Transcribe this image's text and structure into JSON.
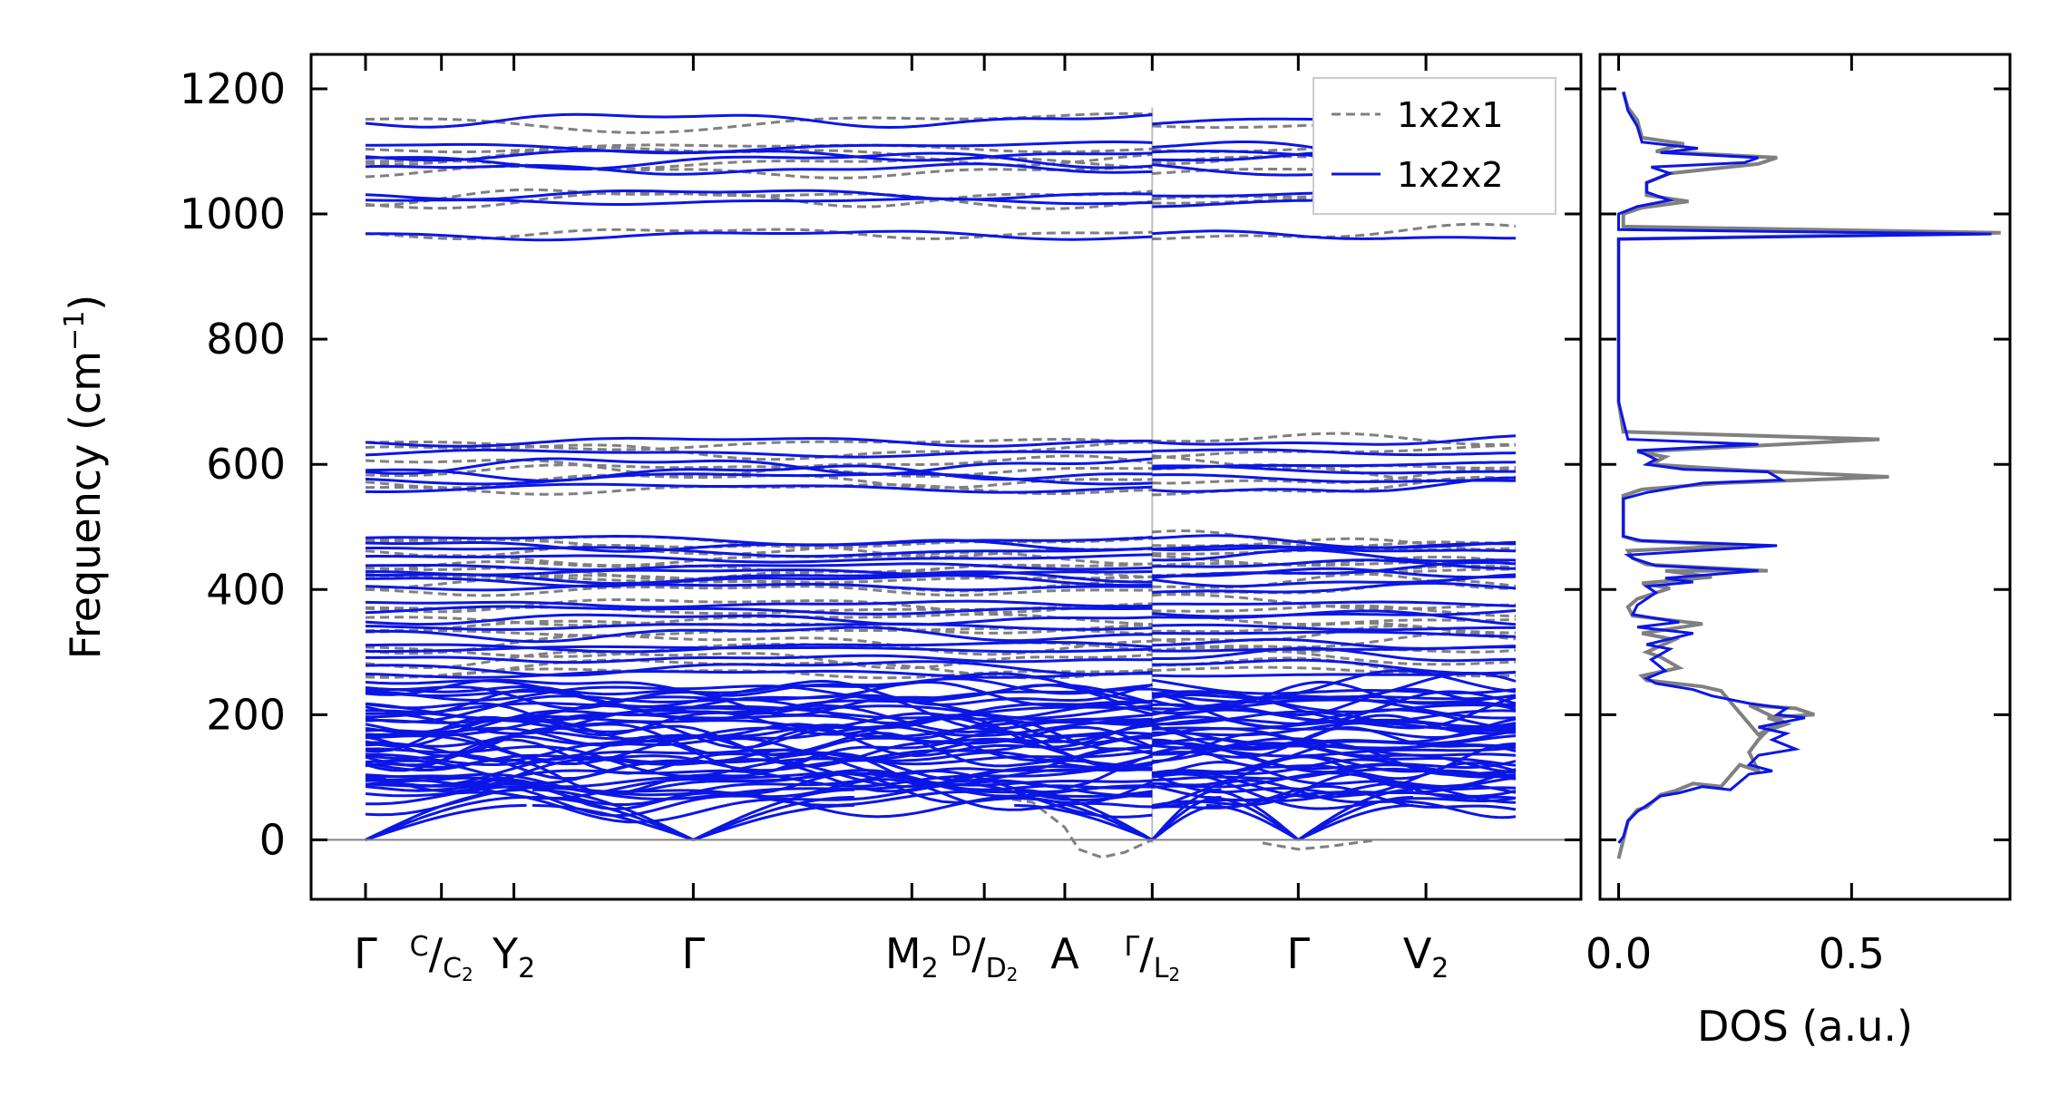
{
  "colors": {
    "blue": "#0b16e6",
    "grey": "#808080"
  },
  "chart_data": [
    {
      "type": "line",
      "name": "phonon band structure",
      "ylabel": "Frequency (cm⁻¹)",
      "ylabel_main": "Frequency (cm",
      "ylabel_exp": "−1",
      "ylabel_close": ")",
      "ylim": [
        -95,
        1255
      ],
      "yticks": [
        0,
        200,
        400,
        600,
        800,
        1000,
        1200
      ],
      "ytick_labels": [
        "0",
        "200",
        "400",
        "600",
        "800",
        "1000",
        "1200"
      ],
      "x_range": [
        0,
        100
      ],
      "xlabels": [
        {
          "x": 0,
          "main": "Γ"
        },
        {
          "x": 28.5,
          "main": "Γ"
        },
        {
          "x": 81.1,
          "main": "Γ"
        },
        {
          "x": 92.2,
          "main": "V",
          "sub": "2"
        }
      ],
      "xlabels_rich": [
        {
          "x": 6.6,
          "num": "C",
          "den": "C",
          "den_sub": "2"
        },
        {
          "x": 12.9,
          "main": "Y",
          "sub": "2"
        },
        {
          "x": 47.5,
          "main": "M",
          "sub": "2"
        },
        {
          "x": 53.8,
          "num": "D",
          "den": "D",
          "den_sub": "2"
        },
        {
          "x": 60.8,
          "main": "A"
        },
        {
          "x": 68.4,
          "num": "Γ",
          "den": "L",
          "den_sub": "2"
        }
      ],
      "xticks": [
        0,
        6.6,
        12.9,
        28.5,
        47.5,
        53.8,
        60.8,
        68.4,
        81.1,
        92.2
      ],
      "segments": [
        [
          0,
          68.4
        ],
        [
          68.4,
          100
        ]
      ],
      "legend": [
        {
          "label": "1x2x1",
          "style": "dashed",
          "color": "#808080"
        },
        {
          "label": "1x2x2",
          "style": "solid",
          "color": "#0b16e6"
        }
      ],
      "series": [
        {
          "name": "1x2x2 flat optical bands",
          "color": "blue",
          "values_cm1": [
            968,
            1022,
            1030,
            1070,
            1085,
            1095,
            1105,
            1148,
            635,
            620,
            598,
            590,
            578,
            565,
            478,
            472,
            462,
            448,
            438,
            428,
            422,
            412,
            402,
            378,
            365,
            352,
            340,
            328,
            312,
            305,
            292,
            278,
            265
          ]
        },
        {
          "name": "1x2x2 low frequency manifold",
          "color": "blue",
          "range_cm1": [
            60,
            245
          ]
        },
        {
          "name": "1x2x2 acoustic branches",
          "color": "blue",
          "values_cm1_zone_boundary": [
            55,
            68,
            80
          ]
        },
        {
          "name": "1x2x1 soft mode near A",
          "color": "grey",
          "min_cm1": -28
        }
      ]
    },
    {
      "type": "line",
      "name": "density of states",
      "xlabel": "DOS (a.u.)",
      "xlim": [
        -0.04,
        0.84
      ],
      "xticks": [
        0,
        0.5
      ],
      "xtick_labels": [
        "0.0",
        "0.5"
      ],
      "series": [
        {
          "name": "1x2x1",
          "color": "grey",
          "points": [
            [
              0.0,
              -30
            ],
            [
              0.01,
              0
            ],
            [
              0.02,
              30
            ],
            [
              0.04,
              48
            ],
            [
              0.06,
              52
            ],
            [
              0.09,
              72
            ],
            [
              0.12,
              78
            ],
            [
              0.16,
              90
            ],
            [
              0.22,
              85
            ],
            [
              0.26,
              120
            ],
            [
              0.3,
              110
            ],
            [
              0.28,
              140
            ],
            [
              0.3,
              160
            ],
            [
              0.32,
              175
            ],
            [
              0.36,
              185
            ],
            [
              0.32,
              195
            ],
            [
              0.42,
              200
            ],
            [
              0.38,
              210
            ],
            [
              0.28,
              215
            ],
            [
              0.35,
              190
            ],
            [
              0.3,
              168
            ],
            [
              0.22,
              238
            ],
            [
              0.18,
              245
            ],
            [
              0.06,
              255
            ],
            [
              0.05,
              262
            ],
            [
              0.13,
              275
            ],
            [
              0.09,
              292
            ],
            [
              0.06,
              300
            ],
            [
              0.12,
              320
            ],
            [
              0.05,
              330
            ],
            [
              0.18,
              345
            ],
            [
              0.03,
              358
            ],
            [
              0.02,
              372
            ],
            [
              0.04,
              385
            ],
            [
              0.11,
              402
            ],
            [
              0.05,
              410
            ],
            [
              0.2,
              420
            ],
            [
              0.1,
              430
            ],
            [
              0.32,
              430
            ],
            [
              0.06,
              440
            ],
            [
              0.03,
              450
            ],
            [
              0.02,
              462
            ],
            [
              0.27,
              470
            ],
            [
              0.04,
              478
            ],
            [
              0.01,
              485
            ],
            [
              0.01,
              550
            ],
            [
              0.05,
              560
            ],
            [
              0.22,
              570
            ],
            [
              0.58,
              580
            ],
            [
              0.28,
              590
            ],
            [
              0.07,
              600
            ],
            [
              0.1,
              612
            ],
            [
              0.04,
              620
            ],
            [
              0.56,
              640
            ],
            [
              0.01,
              652
            ],
            [
              0.0,
              700
            ],
            [
              0.0,
              960
            ],
            [
              0.82,
              970
            ],
            [
              0.01,
              980
            ],
            [
              0.01,
              1000
            ],
            [
              0.05,
              1010
            ],
            [
              0.15,
              1020
            ],
            [
              0.06,
              1030
            ],
            [
              0.06,
              1050
            ],
            [
              0.11,
              1065
            ],
            [
              0.3,
              1080
            ],
            [
              0.34,
              1090
            ],
            [
              0.08,
              1100
            ],
            [
              0.14,
              1112
            ],
            [
              0.05,
              1122
            ],
            [
              0.04,
              1150
            ],
            [
              0.02,
              1170
            ],
            [
              0.01,
              1195
            ]
          ]
        },
        {
          "name": "1x2x2",
          "color": "blue",
          "points": [
            [
              0.0,
              -5
            ],
            [
              0.01,
              5
            ],
            [
              0.02,
              30
            ],
            [
              0.04,
              45
            ],
            [
              0.06,
              55
            ],
            [
              0.09,
              70
            ],
            [
              0.13,
              75
            ],
            [
              0.18,
              85
            ],
            [
              0.24,
              80
            ],
            [
              0.28,
              105
            ],
            [
              0.33,
              110
            ],
            [
              0.28,
              120
            ],
            [
              0.3,
              135
            ],
            [
              0.38,
              145
            ],
            [
              0.33,
              160
            ],
            [
              0.36,
              170
            ],
            [
              0.3,
              180
            ],
            [
              0.4,
              195
            ],
            [
              0.34,
              200
            ],
            [
              0.36,
              210
            ],
            [
              0.28,
              218
            ],
            [
              0.2,
              230
            ],
            [
              0.16,
              240
            ],
            [
              0.08,
              250
            ],
            [
              0.06,
              258
            ],
            [
              0.1,
              270
            ],
            [
              0.07,
              288
            ],
            [
              0.11,
              305
            ],
            [
              0.06,
              312
            ],
            [
              0.16,
              330
            ],
            [
              0.04,
              340
            ],
            [
              0.13,
              348
            ],
            [
              0.03,
              360
            ],
            [
              0.04,
              375
            ],
            [
              0.08,
              395
            ],
            [
              0.06,
              405
            ],
            [
              0.16,
              412
            ],
            [
              0.1,
              418
            ],
            [
              0.3,
              430
            ],
            [
              0.08,
              438
            ],
            [
              0.03,
              450
            ],
            [
              0.02,
              455
            ],
            [
              0.34,
              470
            ],
            [
              0.05,
              478
            ],
            [
              0.01,
              485
            ],
            [
              0.01,
              545
            ],
            [
              0.06,
              555
            ],
            [
              0.18,
              570
            ],
            [
              0.35,
              575
            ],
            [
              0.32,
              588
            ],
            [
              0.14,
              592
            ],
            [
              0.06,
              600
            ],
            [
              0.08,
              608
            ],
            [
              0.04,
              622
            ],
            [
              0.3,
              632
            ],
            [
              0.02,
              640
            ],
            [
              0.0,
              700
            ],
            [
              0.0,
              960
            ],
            [
              0.8,
              968
            ],
            [
              0.0,
              975
            ],
            [
              0.0,
              1000
            ],
            [
              0.04,
              1012
            ],
            [
              0.11,
              1022
            ],
            [
              0.06,
              1035
            ],
            [
              0.06,
              1050
            ],
            [
              0.11,
              1065
            ],
            [
              0.07,
              1075
            ],
            [
              0.27,
              1082
            ],
            [
              0.3,
              1090
            ],
            [
              0.09,
              1098
            ],
            [
              0.17,
              1105
            ],
            [
              0.05,
              1115
            ],
            [
              0.04,
              1140
            ],
            [
              0.02,
              1165
            ],
            [
              0.01,
              1195
            ]
          ]
        }
      ]
    }
  ]
}
